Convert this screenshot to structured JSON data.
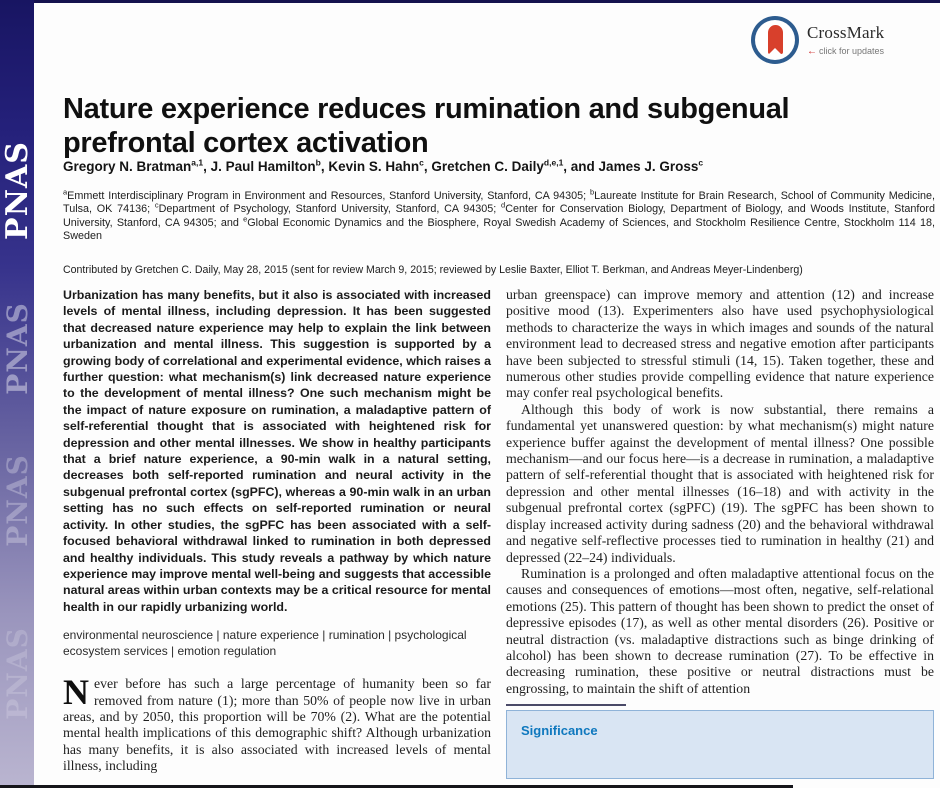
{
  "masthead": {
    "sidebar_word": "PNAS",
    "crossmark": {
      "label": "CrossMark",
      "arrow": "←",
      "sublabel": "click for updates"
    }
  },
  "article": {
    "title": "Nature experience reduces rumination and subgenual prefrontal cortex activation",
    "authors": {
      "parts": [
        "Gregory N. Bratman",
        "a,1",
        ", J. Paul Hamilton",
        "b",
        ", Kevin S. Hahn",
        "c",
        ", Gretchen C. Daily",
        "d,e,1",
        ", and James J. Gross",
        "c"
      ]
    },
    "affiliations": {
      "parts": [
        "a",
        "Emmett Interdisciplinary Program in Environment and Resources, Stanford University, Stanford, CA 94305; ",
        "b",
        "Laureate Institute for Brain Research, School of Community Medicine, Tulsa, OK 74136; ",
        "c",
        "Department of Psychology, Stanford University, Stanford, CA 94305; ",
        "d",
        "Center for Conservation Biology, Department of Biology, and Woods Institute, Stanford University, Stanford, CA 94305; and ",
        "e",
        "Global Economic Dynamics and the Biosphere, Royal Swedish Academy of Sciences, and Stockholm Resilience Centre, Stockholm 114 18, Sweden"
      ]
    },
    "contributed": "Contributed by Gretchen C. Daily, May 28, 2015 (sent for review March 9, 2015; reviewed by Leslie Baxter, Elliot T. Berkman, and Andreas Meyer-Lindenberg)",
    "abstract": "Urbanization has many benefits, but it also is associated with increased levels of mental illness, including depression. It has been suggested that decreased nature experience may help to explain the link between urbanization and mental illness. This suggestion is supported by a growing body of correlational and experimental evidence, which raises a further question: what mechanism(s) link decreased nature experience to the development of mental illness? One such mechanism might be the impact of nature exposure on rumination, a maladaptive pattern of self-referential thought that is associated with heightened risk for depression and other mental illnesses. We show in healthy participants that a brief nature experience, a 90-min walk in a natural setting, decreases both self-reported rumination and neural activity in the subgenual prefrontal cortex (sgPFC), whereas a 90-min walk in an urban setting has no such effects on self-reported rumination or neural activity. In other studies, the sgPFC has been associated with a self-focused behavioral withdrawal linked to rumination in both depressed and healthy individuals. This study reveals a pathway by which nature experience may improve mental well-being and suggests that accessible natural areas within urban contexts may be a critical resource for mental health in our rapidly urbanizing world.",
    "keywords": "environmental neuroscience | nature experience | rumination | psychological ecosystem services | emotion regulation",
    "intro": {
      "dropcap": "N",
      "text": "ever before has such a large percentage of humanity been so far removed from nature (1); more than 50% of people now live in urban areas, and by 2050, this proportion will be 70% (2). What are the potential mental health implications of this demographic shift? Although urbanization has many benefits, it is also associated with increased levels of mental illness, including"
    },
    "right_column": {
      "paragraphs": [
        "urban greenspace) can improve memory and attention (12) and increase positive mood (13). Experimenters also have used psychophysiological methods to characterize the ways in which images and sounds of the natural environment lead to decreased stress and negative emotion after participants have been subjected to stressful stimuli (14, 15). Taken together, these and numerous other studies provide compelling evidence that nature experience may confer real psychological benefits.",
        "Although this body of work is now substantial, there remains a fundamental yet unanswered question: by what mechanism(s) might nature experience buffer against the development of mental illness? One possible mechanism—and our focus here—is a decrease in rumination, a maladaptive pattern of self-referential thought that is associated with heightened risk for depression and other mental illnesses (16–18) and with activity in the subgenual prefrontal cortex (sgPFC) (19). The sgPFC has been shown to display increased activity during sadness (20) and the behavioral withdrawal and negative self-reflective processes tied to rumination in healthy (21) and depressed (22–24) individuals.",
        "Rumination is a prolonged and often maladaptive attentional focus on the causes and consequences of emotions—most often, negative, self-relational emotions (25). This pattern of thought has been shown to predict the onset of depressive episodes (17), as well as other mental disorders (26). Positive or neutral distraction (vs. maladaptive distractions such as binge drinking of alcohol) has been shown to decrease rumination (27). To be effective in decreasing rumination, these positive or neutral distractions must be engrossing, to maintain the shift of attention"
      ]
    },
    "significance": {
      "heading": "Significance"
    }
  },
  "colors": {
    "accent_blue": "#0f78be",
    "box_fill": "#d9e5f3",
    "box_border": "#8fb3d8",
    "crossmark_red": "#d8402c",
    "crossmark_ring": "#2d5c8f",
    "sidebar_top": "#181562",
    "sidebar_bottom": "#bab5d0"
  }
}
